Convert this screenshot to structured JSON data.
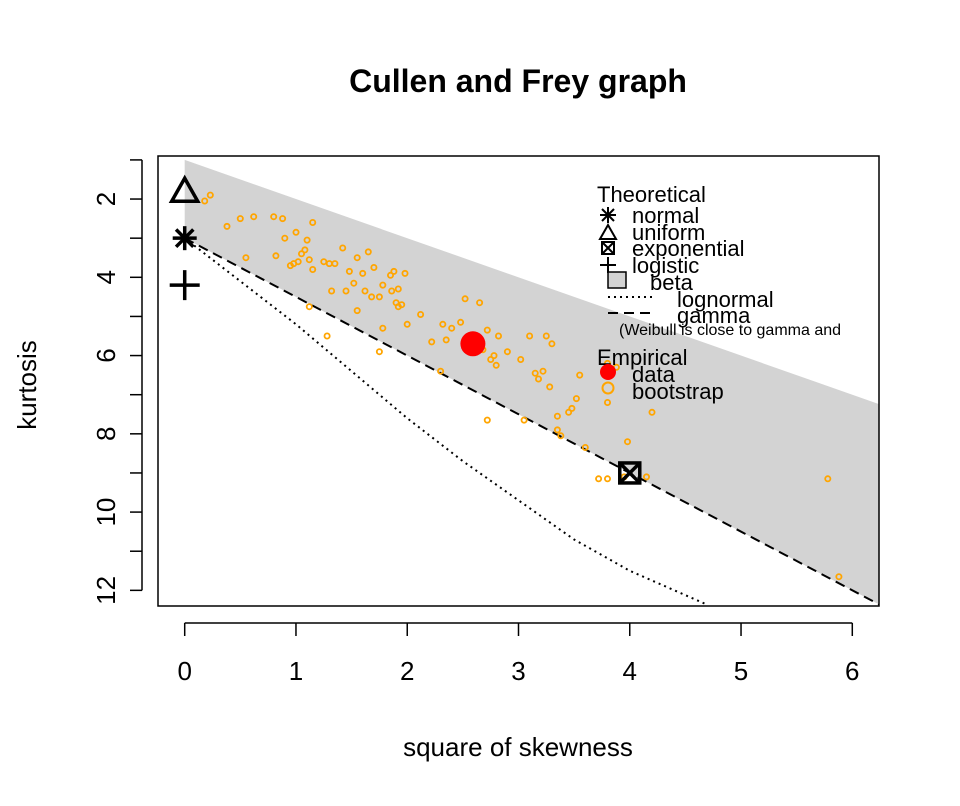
{
  "chart_data": {
    "type": "scatter",
    "title": "Cullen and Frey graph",
    "xlabel": "square of skewness",
    "ylabel": "kurtosis",
    "xlim": [
      -0.24,
      6.24
    ],
    "ylim": [
      0.9,
      12.4
    ],
    "y_reversed": true,
    "x_ticks": [
      0,
      1,
      2,
      3,
      4,
      5,
      6
    ],
    "y_ticks": [
      2,
      4,
      6,
      8,
      10,
      12
    ],
    "grid": false,
    "beta_region": {
      "upper": [
        [
          0,
          1.0
        ],
        [
          6.24,
          7.24
        ]
      ],
      "lower": [
        [
          0,
          3.0
        ],
        [
          6.24,
          12.36
        ]
      ]
    },
    "theoretical_points": [
      {
        "name": "normal",
        "x": 0,
        "y": 3.0,
        "marker": "asterisk"
      },
      {
        "name": "uniform",
        "x": 0,
        "y": 1.8,
        "marker": "triangle"
      },
      {
        "name": "exponential",
        "x": 4,
        "y": 9.0,
        "marker": "boxed-x"
      },
      {
        "name": "logistic",
        "x": 0,
        "y": 4.2,
        "marker": "plus"
      }
    ],
    "lines": [
      {
        "name": "lognormal",
        "style": "dotted",
        "points": [
          [
            0,
            3.0
          ],
          [
            0.5,
            4.1
          ],
          [
            1.0,
            5.2
          ],
          [
            1.5,
            6.4
          ],
          [
            2.0,
            7.6
          ],
          [
            2.5,
            8.7
          ],
          [
            3.0,
            9.7
          ],
          [
            3.5,
            10.7
          ],
          [
            4.0,
            11.5
          ],
          [
            4.69,
            12.36
          ]
        ]
      },
      {
        "name": "gamma",
        "style": "dashed",
        "points": [
          [
            0,
            3.0
          ],
          [
            6.24,
            12.36
          ]
        ]
      }
    ],
    "empirical": {
      "name": "data",
      "x": 2.59,
      "y": 5.7
    },
    "bootstrap": {
      "name": "bootstrap",
      "points": [
        [
          0.18,
          2.05
        ],
        [
          0.23,
          1.9
        ],
        [
          0.38,
          2.7
        ],
        [
          0.5,
          2.5
        ],
        [
          0.55,
          3.5
        ],
        [
          0.62,
          2.45
        ],
        [
          0.8,
          2.45
        ],
        [
          0.82,
          3.45
        ],
        [
          0.88,
          2.5
        ],
        [
          0.9,
          3.0
        ],
        [
          0.95,
          3.7
        ],
        [
          0.98,
          3.65
        ],
        [
          1.0,
          2.85
        ],
        [
          1.02,
          3.6
        ],
        [
          1.05,
          3.4
        ],
        [
          1.08,
          3.3
        ],
        [
          1.1,
          3.05
        ],
        [
          1.12,
          3.55
        ],
        [
          1.15,
          2.6
        ],
        [
          1.15,
          3.8
        ],
        [
          1.12,
          4.75
        ],
        [
          1.25,
          3.6
        ],
        [
          1.3,
          3.65
        ],
        [
          1.28,
          5.5
        ],
        [
          1.35,
          3.65
        ],
        [
          1.32,
          4.35
        ],
        [
          1.42,
          3.25
        ],
        [
          1.48,
          3.85
        ],
        [
          1.45,
          4.35
        ],
        [
          1.52,
          4.15
        ],
        [
          1.55,
          3.5
        ],
        [
          1.55,
          4.85
        ],
        [
          1.6,
          3.9
        ],
        [
          1.62,
          4.35
        ],
        [
          1.65,
          3.35
        ],
        [
          1.68,
          4.5
        ],
        [
          1.7,
          3.75
        ],
        [
          1.75,
          4.5
        ],
        [
          1.78,
          4.2
        ],
        [
          1.78,
          5.3
        ],
        [
          1.75,
          5.9
        ],
        [
          1.85,
          3.95
        ],
        [
          1.88,
          3.85
        ],
        [
          1.9,
          4.65
        ],
        [
          1.92,
          4.3
        ],
        [
          1.95,
          4.7
        ],
        [
          1.98,
          3.9
        ],
        [
          2.0,
          5.2
        ],
        [
          1.86,
          4.35
        ],
        [
          1.92,
          4.75
        ],
        [
          2.12,
          4.95
        ],
        [
          2.22,
          5.65
        ],
        [
          2.32,
          5.2
        ],
        [
          2.35,
          5.6
        ],
        [
          2.4,
          5.3
        ],
        [
          2.48,
          5.15
        ],
        [
          2.52,
          4.55
        ],
        [
          2.62,
          5.55
        ],
        [
          2.65,
          4.65
        ],
        [
          2.68,
          5.85
        ],
        [
          2.72,
          5.35
        ],
        [
          2.75,
          6.1
        ],
        [
          2.78,
          6.0
        ],
        [
          2.82,
          5.5
        ],
        [
          2.9,
          5.9
        ],
        [
          3.02,
          6.1
        ],
        [
          3.1,
          5.5
        ],
        [
          3.15,
          6.45
        ],
        [
          3.18,
          6.6
        ],
        [
          3.22,
          6.4
        ],
        [
          3.25,
          5.5
        ],
        [
          3.28,
          6.8
        ],
        [
          3.3,
          5.7
        ],
        [
          3.35,
          7.55
        ],
        [
          3.35,
          7.9
        ],
        [
          3.38,
          8.05
        ],
        [
          3.45,
          7.45
        ],
        [
          3.48,
          7.35
        ],
        [
          3.52,
          7.1
        ],
        [
          3.55,
          6.5
        ],
        [
          3.6,
          8.35
        ],
        [
          3.72,
          9.15
        ],
        [
          3.8,
          9.15
        ],
        [
          3.8,
          7.2
        ],
        [
          3.8,
          6.2
        ],
        [
          3.88,
          6.3
        ],
        [
          3.95,
          9.1
        ],
        [
          3.98,
          8.2
        ],
        [
          4.15,
          9.1
        ],
        [
          4.2,
          7.45
        ],
        [
          5.78,
          9.15
        ],
        [
          5.88,
          11.65
        ],
        [
          2.3,
          6.4
        ],
        [
          2.8,
          6.25
        ],
        [
          2.72,
          7.65
        ],
        [
          3.05,
          7.65
        ]
      ]
    },
    "legend": {
      "theoretical_title": "Theoretical",
      "theoretical_items": [
        "normal",
        "uniform",
        "exponential",
        "logistic",
        "beta",
        "lognormal",
        "gamma"
      ],
      "note": "(Weibull is close to gamma and",
      "empirical_title": "Empirical",
      "empirical_items": [
        "data",
        "bootstrap"
      ],
      "placement": "top-right"
    },
    "colors": {
      "beta_region": "#d3d3d3",
      "data": "#ff0000",
      "bootstrap": "#ffa500",
      "lines": "#000000"
    }
  }
}
